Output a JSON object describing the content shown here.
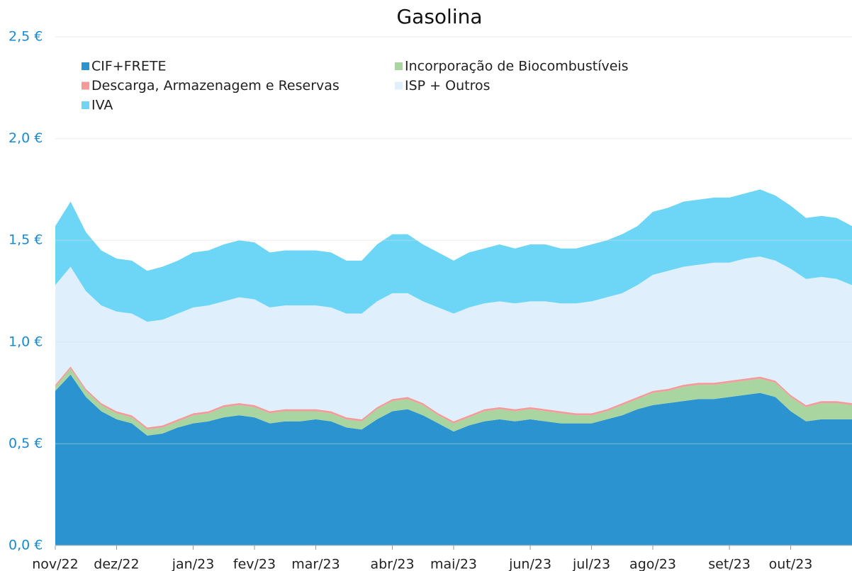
{
  "chart_data": {
    "type": "stacked_area",
    "title": "Gasolina",
    "categories": [
      "nov/22",
      null,
      null,
      null,
      "dez/22",
      null,
      null,
      null,
      null,
      "jan/23",
      null,
      null,
      null,
      "fev/23",
      null,
      null,
      null,
      "mar/23",
      null,
      null,
      null,
      null,
      "abr/23",
      null,
      null,
      null,
      "mai/23",
      null,
      null,
      null,
      null,
      "jun/23",
      null,
      null,
      null,
      "jul/23",
      null,
      null,
      null,
      "ago/23",
      null,
      null,
      null,
      null,
      "set/23",
      null,
      null,
      null,
      "out/23",
      null,
      null,
      null,
      null
    ],
    "series": [
      {
        "name": "CIF+FRETE",
        "color": "#2a93d0",
        "values": [
          0.76,
          0.84,
          0.73,
          0.66,
          0.62,
          0.6,
          0.54,
          0.55,
          0.58,
          0.6,
          0.61,
          0.63,
          0.64,
          0.63,
          0.6,
          0.61,
          0.61,
          0.62,
          0.61,
          0.58,
          0.57,
          0.62,
          0.66,
          0.67,
          0.64,
          0.6,
          0.56,
          0.59,
          0.61,
          0.62,
          0.61,
          0.62,
          0.61,
          0.6,
          0.6,
          0.6,
          0.62,
          0.64,
          0.67,
          0.69,
          0.7,
          0.71,
          0.72,
          0.72,
          0.73,
          0.74,
          0.75,
          0.73,
          0.66,
          0.61,
          0.62,
          0.62,
          0.62
        ]
      },
      {
        "name": "Incorporação de Biocombustíveis",
        "color": "#a8d5a0",
        "values": [
          0.02,
          0.03,
          0.03,
          0.03,
          0.03,
          0.03,
          0.03,
          0.03,
          0.03,
          0.04,
          0.04,
          0.05,
          0.05,
          0.05,
          0.05,
          0.05,
          0.05,
          0.04,
          0.04,
          0.04,
          0.04,
          0.05,
          0.05,
          0.05,
          0.05,
          0.04,
          0.04,
          0.04,
          0.05,
          0.05,
          0.05,
          0.05,
          0.05,
          0.05,
          0.04,
          0.04,
          0.04,
          0.05,
          0.05,
          0.06,
          0.06,
          0.07,
          0.07,
          0.07,
          0.07,
          0.07,
          0.07,
          0.07,
          0.07,
          0.07,
          0.08,
          0.08,
          0.07
        ]
      },
      {
        "name": "Descarga, Armazenagem e Reservas",
        "color": "#f59a9a",
        "values": [
          0.01,
          0.01,
          0.01,
          0.01,
          0.01,
          0.01,
          0.01,
          0.01,
          0.01,
          0.01,
          0.01,
          0.01,
          0.01,
          0.01,
          0.01,
          0.01,
          0.01,
          0.01,
          0.01,
          0.01,
          0.01,
          0.01,
          0.01,
          0.01,
          0.01,
          0.01,
          0.01,
          0.01,
          0.01,
          0.01,
          0.01,
          0.01,
          0.01,
          0.01,
          0.01,
          0.01,
          0.01,
          0.01,
          0.01,
          0.01,
          0.01,
          0.01,
          0.01,
          0.01,
          0.01,
          0.01,
          0.01,
          0.01,
          0.01,
          0.01,
          0.01,
          0.01,
          0.01
        ]
      },
      {
        "name": "ISP + Outros",
        "color": "#dff0fc",
        "values": [
          0.49,
          0.49,
          0.48,
          0.48,
          0.49,
          0.5,
          0.52,
          0.52,
          0.52,
          0.52,
          0.52,
          0.51,
          0.52,
          0.52,
          0.51,
          0.51,
          0.51,
          0.51,
          0.51,
          0.51,
          0.52,
          0.52,
          0.52,
          0.51,
          0.5,
          0.52,
          0.53,
          0.53,
          0.52,
          0.52,
          0.52,
          0.52,
          0.53,
          0.53,
          0.54,
          0.55,
          0.55,
          0.54,
          0.55,
          0.57,
          0.58,
          0.58,
          0.58,
          0.59,
          0.58,
          0.59,
          0.59,
          0.59,
          0.62,
          0.62,
          0.61,
          0.6,
          0.58
        ]
      },
      {
        "name": "IVA",
        "color": "#6dd5f5",
        "values": [
          0.29,
          0.32,
          0.29,
          0.27,
          0.26,
          0.26,
          0.25,
          0.26,
          0.26,
          0.27,
          0.27,
          0.28,
          0.28,
          0.28,
          0.27,
          0.27,
          0.27,
          0.27,
          0.27,
          0.26,
          0.26,
          0.28,
          0.29,
          0.29,
          0.28,
          0.27,
          0.26,
          0.27,
          0.27,
          0.28,
          0.27,
          0.28,
          0.28,
          0.27,
          0.27,
          0.28,
          0.28,
          0.29,
          0.29,
          0.31,
          0.31,
          0.32,
          0.32,
          0.32,
          0.32,
          0.32,
          0.33,
          0.32,
          0.31,
          0.3,
          0.3,
          0.3,
          0.29
        ]
      }
    ],
    "ylim": [
      0,
      2.5
    ],
    "yticks": [
      {
        "value": 0,
        "label": "0,0 €"
      },
      {
        "value": 0.5,
        "label": "0,5 €"
      },
      {
        "value": 1,
        "label": "1,0 €"
      },
      {
        "value": 1.5,
        "label": "1,5 €"
      },
      {
        "value": 2,
        "label": "2,0 €"
      },
      {
        "value": 2.5,
        "label": "2,5 €"
      }
    ],
    "grid": true,
    "legend": "top-left"
  }
}
